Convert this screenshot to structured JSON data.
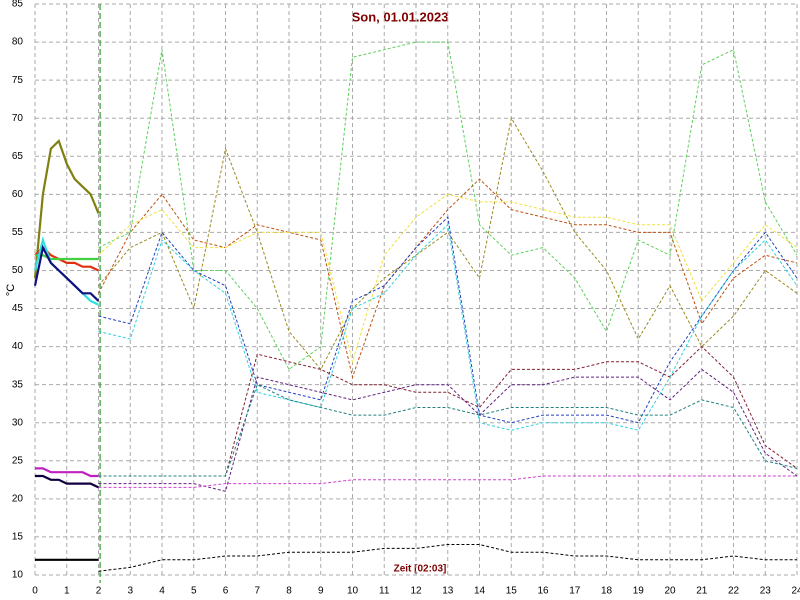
{
  "chart_data": {
    "type": "line",
    "title": "Son, 01.01.2023",
    "ylabel": "°C",
    "xlabel": "Zeit [02:03]",
    "xlim": [
      0,
      24
    ],
    "ylim": [
      10,
      85
    ],
    "xticks": [
      0,
      1,
      2,
      3,
      4,
      5,
      6,
      7,
      8,
      9,
      10,
      11,
      12,
      13,
      14,
      15,
      16,
      17,
      18,
      19,
      20,
      21,
      22,
      23,
      24
    ],
    "yticks": [
      10,
      15,
      20,
      25,
      30,
      35,
      40,
      45,
      50,
      55,
      60,
      65,
      70,
      75,
      80,
      85
    ],
    "grid": true,
    "now_x": 2.05,
    "now_color": "#2e9a2e",
    "x": [
      0,
      1,
      2,
      3,
      4,
      5,
      6,
      7,
      8,
      9,
      10,
      11,
      12,
      13,
      14,
      15,
      16,
      17,
      18,
      19,
      20,
      21,
      22,
      23,
      24
    ],
    "series": [
      {
        "color": "#5ed05e",
        "dashed": true,
        "values": [
          null,
          null,
          53,
          55,
          79,
          50,
          50,
          45,
          37,
          40,
          78,
          79,
          80,
          80,
          56,
          52,
          53,
          49,
          42,
          54,
          52,
          77,
          79,
          59,
          52
        ]
      },
      {
        "color": "#9a8a20",
        "dashed": true,
        "values": [
          null,
          null,
          48,
          53,
          55,
          45,
          66,
          55,
          42,
          37,
          45,
          49,
          52,
          55,
          49,
          70,
          63,
          55,
          50,
          41,
          48,
          40,
          44,
          50,
          47
        ]
      },
      {
        "color": "#c05010",
        "dashed": true,
        "values": [
          null,
          null,
          47,
          55,
          60,
          54,
          53,
          56,
          55,
          54,
          36,
          48,
          53,
          58,
          62,
          58,
          57,
          56,
          56,
          55,
          55,
          43,
          49,
          52,
          51
        ]
      },
      {
        "color": "#f0e040",
        "dashed": true,
        "values": [
          null,
          null,
          52,
          56,
          58,
          53,
          53,
          55,
          55,
          55,
          38,
          52,
          57,
          60,
          59,
          59,
          58,
          57,
          57,
          56,
          56,
          46,
          51,
          56,
          53
        ]
      },
      {
        "color": "#2040c0",
        "dashed": true,
        "values": [
          null,
          null,
          44,
          43,
          55,
          50,
          48,
          35,
          34,
          33,
          46,
          48,
          53,
          57,
          31,
          30,
          31,
          31,
          31,
          30,
          38,
          44,
          50,
          55,
          49
        ]
      },
      {
        "color": "#30d0e0",
        "dashed": true,
        "values": [
          null,
          null,
          42,
          41,
          54,
          50,
          47,
          34,
          33,
          32,
          45,
          47,
          52,
          56,
          30,
          29,
          30,
          30,
          30,
          29,
          36,
          44,
          50,
          54,
          48
        ]
      },
      {
        "color": "#802030",
        "dashed": true,
        "values": [
          null,
          null,
          23,
          23,
          23,
          23,
          23,
          39,
          38,
          37,
          35,
          35,
          34,
          34,
          32,
          37,
          37,
          37,
          38,
          38,
          36,
          40,
          36,
          27,
          24
        ]
      },
      {
        "color": "#602080",
        "dashed": true,
        "values": [
          null,
          null,
          22,
          22,
          22,
          22,
          21,
          36,
          35,
          34,
          33,
          34,
          35,
          35,
          31,
          35,
          35,
          36,
          36,
          36,
          33,
          37,
          34,
          26,
          23
        ]
      },
      {
        "color": "#208080",
        "dashed": true,
        "values": [
          null,
          null,
          23,
          23,
          23,
          23,
          23,
          35,
          33,
          32,
          31,
          31,
          32,
          32,
          31,
          32,
          32,
          32,
          32,
          31,
          31,
          33,
          32,
          25,
          24
        ]
      },
      {
        "color": "#d040d0",
        "dashed": true,
        "values": [
          null,
          null,
          21.5,
          21.5,
          21.5,
          21.5,
          22,
          22,
          22,
          22,
          22.5,
          22.5,
          22.5,
          22.5,
          22.5,
          22.5,
          23,
          23,
          23,
          23,
          23,
          23,
          23,
          23,
          23
        ]
      },
      {
        "color": "#000000",
        "dashed": true,
        "values": [
          null,
          null,
          10.5,
          11,
          12,
          12,
          12.5,
          12.5,
          13,
          13,
          13,
          13.5,
          13.5,
          14,
          14,
          13,
          13,
          12.5,
          12.5,
          12,
          12,
          12,
          12.5,
          12,
          12
        ]
      },
      {
        "color": "#808010",
        "dashed": false,
        "x": [
          0,
          0.25,
          0.5,
          0.75,
          1,
          1.25,
          1.5,
          1.75,
          2
        ],
        "values": [
          49,
          60,
          66,
          67,
          64,
          62,
          61,
          60,
          57.5
        ]
      },
      {
        "color": "#e03010",
        "dashed": false,
        "x": [
          0,
          0.25,
          0.5,
          0.75,
          1,
          1.25,
          1.5,
          1.75,
          2
        ],
        "values": [
          52,
          53,
          52,
          51.5,
          51,
          51,
          50.5,
          50.5,
          50
        ]
      },
      {
        "color": "#40d040",
        "dashed": false,
        "x": [
          0,
          0.25,
          0.5,
          0.75,
          1,
          1.25,
          1.5,
          1.75,
          2
        ],
        "values": [
          52,
          52,
          51.5,
          51.5,
          51.5,
          51.5,
          51.5,
          51.5,
          51.5
        ]
      },
      {
        "color": "#30e0e0",
        "dashed": false,
        "x": [
          0,
          0.25,
          0.5,
          0.75,
          1,
          1.25,
          1.5,
          1.75,
          2
        ],
        "values": [
          50,
          54,
          51,
          50,
          49,
          48,
          47,
          46,
          45.5
        ]
      },
      {
        "color": "#101080",
        "dashed": false,
        "x": [
          0,
          0.25,
          0.5,
          0.75,
          1,
          1.25,
          1.5,
          1.75,
          2
        ],
        "values": [
          48,
          53,
          51,
          50,
          49,
          48,
          47,
          47,
          46
        ]
      },
      {
        "color": "#c020c0",
        "dashed": false,
        "x": [
          0,
          0.25,
          0.5,
          0.75,
          1,
          1.25,
          1.5,
          1.75,
          2
        ],
        "values": [
          24,
          24,
          23.5,
          23.5,
          23.5,
          23.5,
          23.5,
          23,
          23
        ]
      },
      {
        "color": "#100040",
        "dashed": false,
        "x": [
          0,
          0.25,
          0.5,
          0.75,
          1,
          1.25,
          1.5,
          1.75,
          2
        ],
        "values": [
          23,
          23,
          22.5,
          22.5,
          22,
          22,
          22,
          22,
          21.5
        ]
      },
      {
        "color": "#000000",
        "dashed": false,
        "x": [
          0,
          0.25,
          0.5,
          0.75,
          1,
          1.25,
          1.5,
          1.75,
          2
        ],
        "values": [
          12,
          12,
          12,
          12,
          12,
          12,
          12,
          12,
          12
        ]
      }
    ]
  }
}
